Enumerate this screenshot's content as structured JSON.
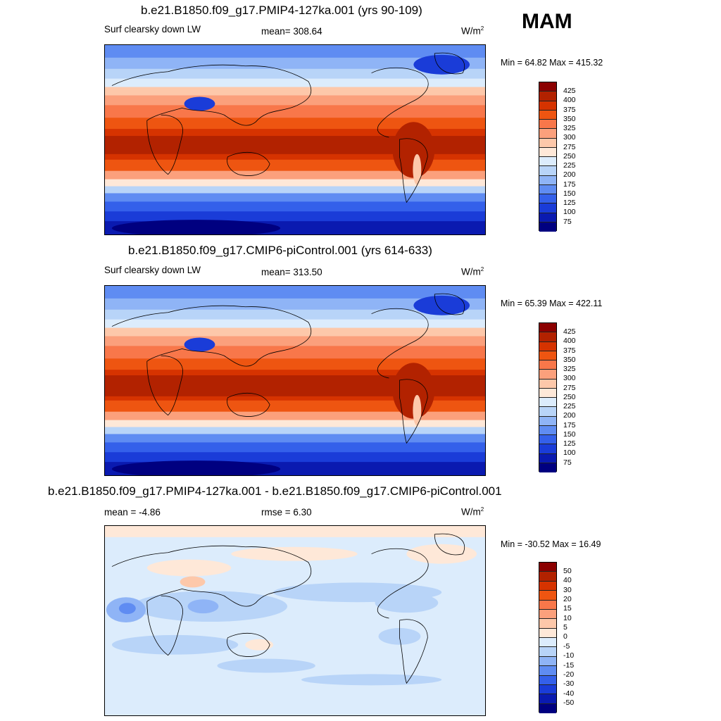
{
  "season": "MAM",
  "panels": [
    {
      "title": "b.e21.B1850.f09_g17.PMIP4-127ka.001 (yrs 90-109)",
      "left_label": "Surf clearsky down LW",
      "center_label": "mean= 308.64",
      "units": "W/m",
      "units_exp": "2",
      "minmax": "Min =  64.82 Max = 415.32"
    },
    {
      "title": "b.e21.B1850.f09_g17.CMIP6-piControl.001 (yrs 614-633)",
      "left_label": "Surf clearsky down LW",
      "center_label": "mean= 313.50",
      "units": "W/m",
      "units_exp": "2",
      "minmax": "Min =  65.39 Max = 422.11"
    },
    {
      "title": "b.e21.B1850.f09_g17.PMIP4-127ka.001 - b.e21.B1850.f09_g17.CMIP6-piControl.001",
      "left_label": "mean =  -4.86",
      "center_label": "rmse =   6.30",
      "units": "W/m",
      "units_exp": "2",
      "minmax": "Min = -30.52 Max =  16.49"
    }
  ],
  "colorbar_abs": {
    "labels": [
      "425",
      "400",
      "375",
      "350",
      "325",
      "300",
      "275",
      "250",
      "225",
      "200",
      "175",
      "150",
      "125",
      "100",
      "75"
    ],
    "colors": [
      "#8b0000",
      "#b22200",
      "#d63300",
      "#ee5511",
      "#f8774a",
      "#fba07c",
      "#fdc8aa",
      "#fee8d8",
      "#dcecfc",
      "#b8d4f8",
      "#8fb4f6",
      "#5f8cf2",
      "#3460ea",
      "#1a3cd8",
      "#0a1ab0",
      "#000080"
    ]
  },
  "colorbar_diff": {
    "labels": [
      "50",
      "40",
      "30",
      "20",
      "15",
      "10",
      "5",
      "0",
      "-5",
      "-10",
      "-15",
      "-20",
      "-30",
      "-40",
      "-50"
    ],
    "colors": [
      "#8b0000",
      "#b22200",
      "#d63300",
      "#ee5511",
      "#f8774a",
      "#fba07c",
      "#fdc8aa",
      "#fee8d8",
      "#dcecfc",
      "#b8d4f8",
      "#8fb4f6",
      "#5f8cf2",
      "#3460ea",
      "#1a3cd8",
      "#0a1ab0",
      "#000080"
    ]
  }
}
